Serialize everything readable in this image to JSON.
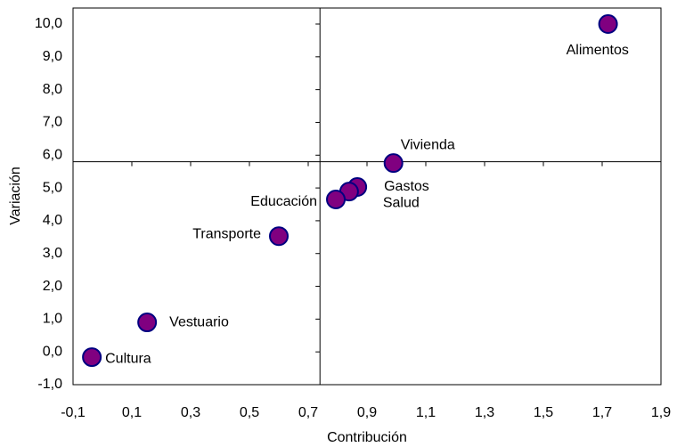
{
  "chart_data": {
    "type": "scatter",
    "x_label": "Contribución",
    "y_label": "Variación",
    "series": [
      {
        "color": "#800080",
        "edge_color": "#000080",
        "labels": [
          "Alimentos",
          "Vivienda",
          "Gastos",
          "Salud",
          "Educación",
          "Transporte",
          "Vestuario",
          "Cultura"
        ],
        "x": [
          1.72,
          0.99,
          0.867,
          0.839,
          0.794,
          0.6,
          0.152,
          -0.036
        ],
        "values": [
          10.0,
          5.76,
          5.03,
          4.89,
          4.65,
          3.53,
          0.9,
          -0.16
        ]
      }
    ],
    "xlim": [
      -0.1,
      1.9
    ],
    "xticks": [
      {
        "value": -0.1,
        "label": "-0,1"
      },
      {
        "value": 0.1,
        "label": "0,1"
      },
      {
        "value": 0.3,
        "label": "0,3"
      },
      {
        "value": 0.5,
        "label": "0,5"
      },
      {
        "value": 0.7,
        "label": "0,7"
      },
      {
        "value": 0.9,
        "label": "0,9"
      },
      {
        "value": 1.1,
        "label": "1,1"
      },
      {
        "value": 1.3,
        "label": "1,3"
      },
      {
        "value": 1.5,
        "label": "1,5"
      },
      {
        "value": 1.7,
        "label": "1,7"
      },
      {
        "value": 1.9,
        "label": "1,9"
      }
    ],
    "ylim": [
      -1,
      10
    ],
    "yticks": [
      {
        "value": -1,
        "label": "-1,0"
      },
      {
        "value": 0,
        "label": "0,0"
      },
      {
        "value": 1,
        "label": "1,0"
      },
      {
        "value": 2,
        "label": "2,0"
      },
      {
        "value": 3,
        "label": "3,0"
      },
      {
        "value": 4,
        "label": "4,0"
      },
      {
        "value": 5,
        "label": "5,0"
      },
      {
        "value": 6,
        "label": "6,0"
      },
      {
        "value": 7,
        "label": "7,0"
      },
      {
        "value": 8,
        "label": "8,0"
      },
      {
        "value": 9,
        "label": "9,0"
      },
      {
        "value": 10,
        "label": "10,0"
      }
    ],
    "axis_cross": {
      "x": 0.74,
      "y": 5.8
    }
  }
}
